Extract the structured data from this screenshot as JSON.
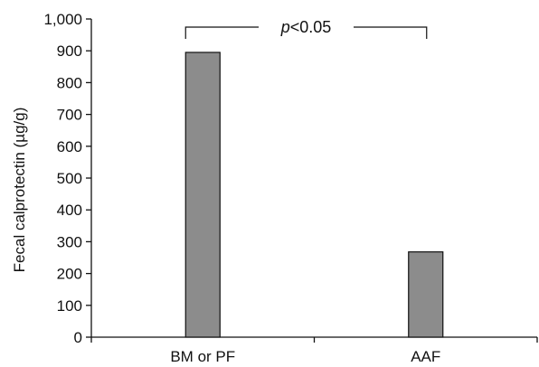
{
  "chart_data": {
    "type": "bar",
    "categories": [
      "BM or PF",
      "AAF"
    ],
    "values": [
      895,
      268
    ],
    "ylabel": "Fecal calprotectin (µg/g)",
    "xlabel": "",
    "ylim": [
      0,
      1000
    ],
    "yticks": [
      0,
      100,
      200,
      300,
      400,
      500,
      600,
      700,
      800,
      900,
      1000
    ],
    "ytick_labels": [
      "0",
      "100",
      "200",
      "300",
      "400",
      "500",
      "600",
      "700",
      "800",
      "900",
      "1,000"
    ],
    "bar_color": "#8c8c8c",
    "grid": false,
    "legend": "none",
    "annotation": {
      "type": "significance-bracket",
      "between": [
        "BM or PF",
        "AAF"
      ],
      "text": "p<0.05"
    }
  }
}
